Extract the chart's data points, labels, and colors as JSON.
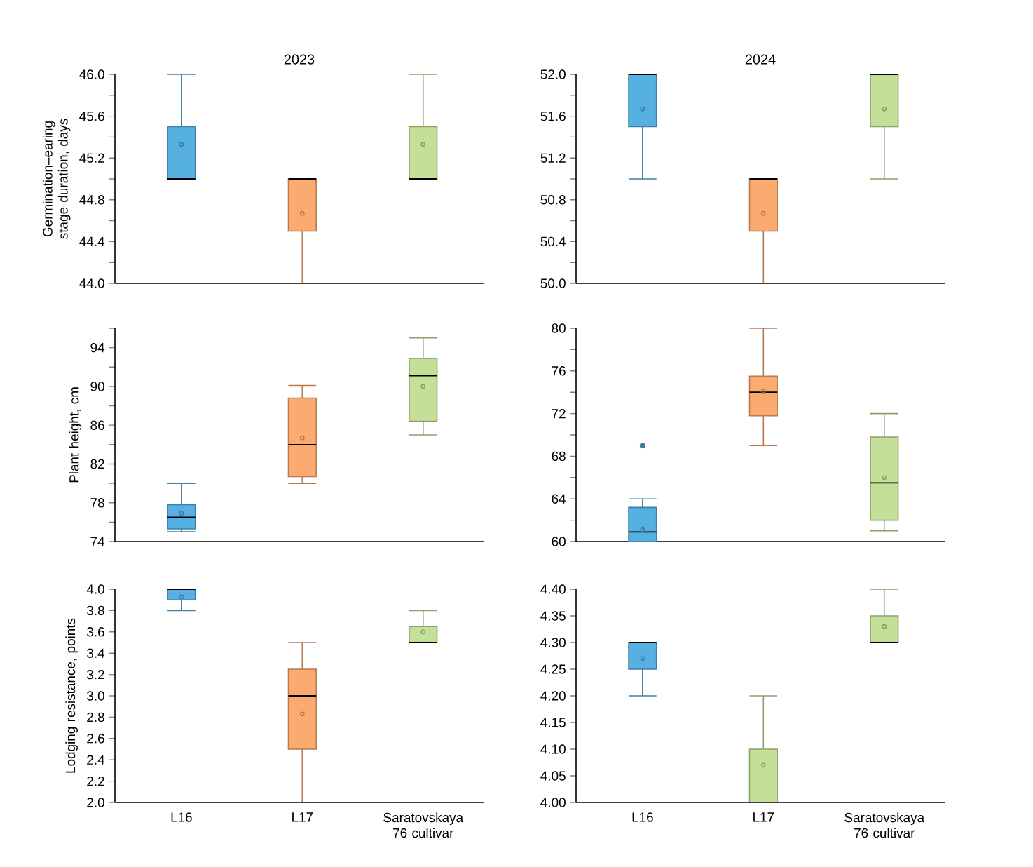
{
  "chart_data": [
    {
      "type": "box",
      "title": "2023",
      "ylabel": "Germination–earing stage duration, days",
      "categories": [
        null,
        null,
        null
      ],
      "colors": [
        "#56b1e2",
        "#fbaa70",
        "#c4df98"
      ],
      "boxes": [
        {
          "low": 45.0,
          "q1": 45.0,
          "median": 45.0,
          "q3": 45.5,
          "high": 46.0,
          "mean": 45.33
        },
        {
          "low": 44.0,
          "q1": 44.5,
          "median": 45.0,
          "q3": 45.0,
          "high": 45.0,
          "mean": 44.67
        },
        {
          "low": 45.0,
          "q1": 45.0,
          "median": 45.0,
          "q3": 45.5,
          "high": 46.0,
          "mean": 45.33
        }
      ],
      "ylim": [
        44,
        46
      ],
      "yticks": [
        {
          "value": 44,
          "label": "44.0"
        },
        {
          "value": 44.2,
          "label": null
        },
        {
          "value": 44.4,
          "label": "44.4"
        },
        {
          "value": 44.6,
          "label": null
        },
        {
          "value": 44.8,
          "label": "44.8"
        },
        {
          "value": 45,
          "label": null
        },
        {
          "value": 45.2,
          "label": "45.2"
        },
        {
          "value": 45.4,
          "label": null
        },
        {
          "value": 45.6,
          "label": "45.6"
        },
        {
          "value": 45.8,
          "label": null
        },
        {
          "value": 46,
          "label": "46.0"
        }
      ]
    },
    {
      "type": "box",
      "title": "2024",
      "categories": [
        null,
        null,
        null
      ],
      "colors": [
        "#56b1e2",
        "#fbaa70",
        "#c4df98"
      ],
      "boxes": [
        {
          "low": 51.0,
          "q1": 51.5,
          "median": 52.0,
          "q3": 52.0,
          "high": 52.0,
          "mean": 51.67
        },
        {
          "low": 50.0,
          "q1": 50.5,
          "median": 51.0,
          "q3": 51.0,
          "high": 51.0,
          "mean": 50.67
        },
        {
          "low": 51.0,
          "q1": 51.5,
          "median": 52.0,
          "q3": 52.0,
          "high": 52.0,
          "mean": 51.67
        }
      ],
      "ylim": [
        50,
        52
      ],
      "yticks": [
        {
          "value": 50,
          "label": "50.0"
        },
        {
          "value": 50.2,
          "label": null
        },
        {
          "value": 50.4,
          "label": "50.4"
        },
        {
          "value": 50.6,
          "label": null
        },
        {
          "value": 50.8,
          "label": "50.8"
        },
        {
          "value": 51,
          "label": null
        },
        {
          "value": 51.2,
          "label": "51.2"
        },
        {
          "value": 51.4,
          "label": null
        },
        {
          "value": 51.6,
          "label": "51.6"
        },
        {
          "value": 51.8,
          "label": null
        },
        {
          "value": 52,
          "label": "52.0"
        }
      ]
    },
    {
      "type": "box",
      "ylabel": "Plant height, cm",
      "categories": [
        null,
        null,
        null
      ],
      "colors": [
        "#56b1e2",
        "#fbaa70",
        "#c4df98"
      ],
      "boxes": [
        {
          "low": 75.0,
          "q1": 75.3,
          "median": 76.5,
          "q3": 77.8,
          "high": 80.0,
          "mean": 76.9
        },
        {
          "low": 80.0,
          "q1": 80.7,
          "median": 84.0,
          "q3": 88.8,
          "high": 90.1,
          "mean": 84.7
        },
        {
          "low": 85.0,
          "q1": 86.4,
          "median": 91.1,
          "q3": 92.9,
          "high": 95.0,
          "mean": 90.0
        }
      ],
      "ylim": [
        74,
        96
      ],
      "yticks": [
        74,
        {
          "value": 76,
          "label": null
        },
        78,
        {
          "value": 80,
          "label": null
        },
        82,
        {
          "value": 84,
          "label": null
        },
        86,
        {
          "value": 88,
          "label": null
        },
        90,
        {
          "value": 92,
          "label": null
        },
        94,
        {
          "value": 96,
          "label": null
        }
      ]
    },
    {
      "type": "box",
      "categories": [
        null,
        null,
        null
      ],
      "colors": [
        "#56b1e2",
        "#fbaa70",
        "#c4df98"
      ],
      "boxes": [
        {
          "low": 60.0,
          "q1": 60.0,
          "median": 60.9,
          "q3": 63.2,
          "high": 64.0,
          "mean": 61.1,
          "outliers": [
            69.0
          ]
        },
        {
          "low": 69.0,
          "q1": 71.8,
          "median": 74.0,
          "q3": 75.5,
          "high": 80.0,
          "mean": 74.1
        },
        {
          "low": 61.0,
          "q1": 62.0,
          "median": 65.5,
          "q3": 69.8,
          "high": 72.0,
          "mean": 66.0
        }
      ],
      "ylim": [
        60,
        80
      ],
      "yticks": [
        60,
        {
          "value": 62,
          "label": null
        },
        64,
        {
          "value": 66,
          "label": null
        },
        68,
        {
          "value": 70,
          "label": null
        },
        72,
        {
          "value": 74,
          "label": null
        },
        76,
        {
          "value": 78,
          "label": null
        },
        80
      ]
    },
    {
      "type": "box",
      "ylabel": "Lodging resistance, points",
      "categories": [
        "L16",
        "L17",
        "Saratovskaya 76 cultivar"
      ],
      "colors": [
        "#56b1e2",
        "#fbaa70",
        "#c4df98"
      ],
      "boxes": [
        {
          "low": 3.8,
          "q1": 3.9,
          "median": 4.0,
          "q3": 4.0,
          "high": 4.0,
          "mean": 3.93
        },
        {
          "low": 2.0,
          "q1": 2.5,
          "median": 3.0,
          "q3": 3.25,
          "high": 3.5,
          "mean": 2.83
        },
        {
          "low": 3.5,
          "q1": 3.5,
          "median": 3.5,
          "q3": 3.65,
          "high": 3.8,
          "mean": 3.6
        }
      ],
      "ylim": [
        2,
        4
      ],
      "yticks": [
        {
          "value": 2,
          "label": "2.0"
        },
        2.2,
        2.4,
        2.6,
        2.8,
        {
          "value": 3,
          "label": "3.0"
        },
        3.2,
        3.4,
        3.6,
        3.8,
        {
          "value": 4,
          "label": "4.0"
        }
      ]
    },
    {
      "type": "box",
      "categories": [
        "L16",
        "L17",
        "Saratovskaya 76 cultivar"
      ],
      "colors": [
        "#56b1e2",
        "#c4df98",
        "#c4df98"
      ],
      "boxes": [
        {
          "low": 4.2,
          "q1": 4.25,
          "median": 4.3,
          "q3": 4.3,
          "high": 4.3,
          "mean": 4.27
        },
        {
          "low": 4.0,
          "q1": 4.0,
          "median": 4.0,
          "q3": 4.1,
          "high": 4.2,
          "mean": 4.07
        },
        {
          "low": 4.3,
          "q1": 4.3,
          "median": 4.3,
          "q3": 4.35,
          "high": 4.4,
          "mean": 4.33
        }
      ],
      "ylim": [
        4,
        4.4
      ],
      "yticks": [
        {
          "value": 4,
          "label": "4.00"
        },
        {
          "value": 4.05,
          "label": "4.05"
        },
        {
          "value": 4.1,
          "label": "4.10"
        },
        {
          "value": 4.15,
          "label": "4.15"
        },
        {
          "value": 4.2,
          "label": "4.20"
        },
        {
          "value": 4.25,
          "label": "4.25"
        },
        {
          "value": 4.3,
          "label": "4.30"
        },
        {
          "value": 4.35,
          "label": "4.35"
        },
        {
          "value": 4.4,
          "label": "4.40"
        }
      ]
    }
  ]
}
